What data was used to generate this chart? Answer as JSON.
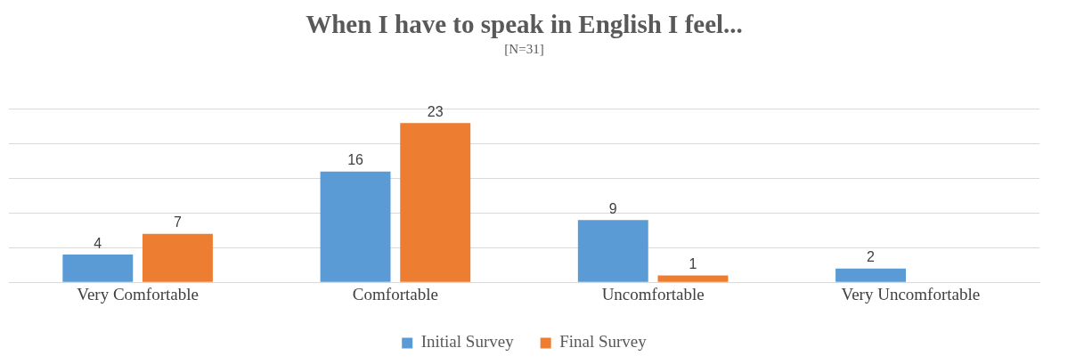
{
  "chart_data": {
    "type": "bar",
    "title": "When I have to speak in English I feel...",
    "subtitle": "[N=31]",
    "categories": [
      "Very Comfortable",
      "Comfortable",
      "Uncomfortable",
      "Very Uncomfortable"
    ],
    "series": [
      {
        "name": "Initial Survey",
        "color": "#5b9bd5",
        "values": [
          4,
          16,
          9,
          2
        ]
      },
      {
        "name": "Final Survey",
        "color": "#ed7d31",
        "values": [
          7,
          23,
          1,
          null
        ]
      }
    ],
    "ylim": [
      0,
      25
    ],
    "yticks": [
      {
        "value": 0,
        "label": null
      },
      {
        "value": 5,
        "label": null
      },
      {
        "value": 10,
        "label": null
      },
      {
        "value": 15,
        "label": null
      },
      {
        "value": 20,
        "label": null
      },
      {
        "value": 25,
        "label": null
      }
    ],
    "tick_labels": "x",
    "grid": "y",
    "legend": "bottom",
    "data_labels": true
  }
}
